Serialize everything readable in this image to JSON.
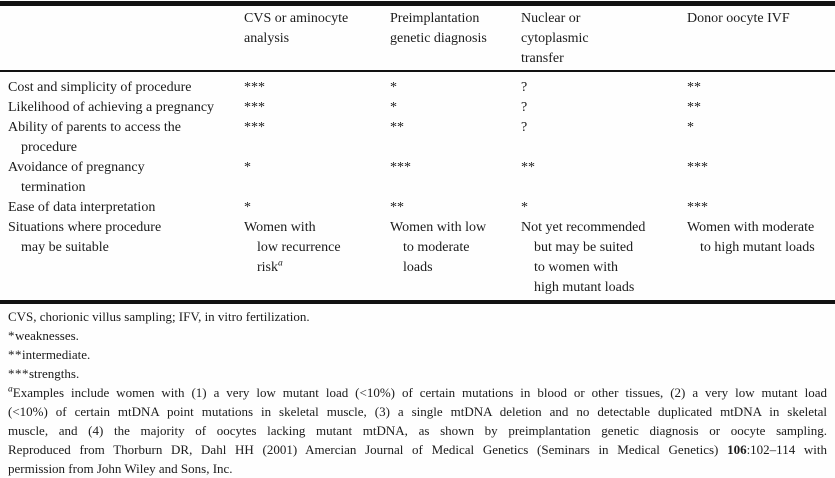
{
  "page": {
    "background": "#fefefe",
    "text_color": "#1b1b1b"
  },
  "table": {
    "header": {
      "col1_lines": [
        "CVS or aminocyte",
        "analysis"
      ],
      "col2_lines": [
        "Preimplantation",
        "genetic diagnosis"
      ],
      "col3_lines": [
        "Nuclear or",
        "cytoplasmic",
        "transfer"
      ],
      "col4_lines": [
        "Donor oocyte IVF"
      ]
    },
    "rows": [
      {
        "label_lines": [
          "Cost and simplicity of procedure"
        ],
        "values": [
          "***",
          "*",
          "?",
          "**"
        ]
      },
      {
        "label_lines": [
          "Likelihood of achieving a pregnancy"
        ],
        "values": [
          "***",
          "*",
          "?",
          "**"
        ]
      },
      {
        "label_lines": [
          "Ability of parents to access the",
          "procedure"
        ],
        "values": [
          "***",
          "**",
          "?",
          "*"
        ]
      },
      {
        "label_lines": [
          "Avoidance of pregnancy",
          "termination"
        ],
        "values": [
          "*",
          "***",
          "**",
          "***"
        ]
      },
      {
        "label_lines": [
          "Ease of data interpretation"
        ],
        "values": [
          "*",
          "**",
          "*",
          "***"
        ]
      }
    ],
    "situations_row": {
      "label_lines": [
        "Situations where procedure",
        "may be suitable"
      ],
      "cvs": {
        "lines": [
          "Women with",
          "low recurrence"
        ],
        "last_line": "risk",
        "sup": "a"
      },
      "pgd": {
        "lines": [
          "Women with low",
          "to moderate",
          "loads"
        ]
      },
      "nct": {
        "lines": [
          "Not yet recommended",
          "but may be suited",
          "to women with",
          "high mutant loads"
        ]
      },
      "ivf": {
        "lines": [
          "Women with moderate",
          "to high mutant loads"
        ]
      }
    }
  },
  "footnotes": {
    "abbrev": "CVS, chorionic villus sampling; IFV, in vitro fertilization.",
    "weak_marker": "*",
    "weak_text": "weaknesses.",
    "inter_marker": "**",
    "inter_text": "intermediate.",
    "strength_marker": "***",
    "strength_text": "strengths.",
    "examples_sup": "a",
    "examples_lines": [
      "Examples include women with (1) a very low mutant load (<10%) of certain mutations in blood or other tissues, (2) a very low mutant load",
      "(<10%) of certain mtDNA point mutations in skeletal muscle, (3) a single mtDNA deletion and no detectable duplicated mtDNA in skeletal",
      "muscle, and (4) the majority of oocytes lacking mutant mtDNA, as shown by preimplantation genetic diagnosis or oocyte sampling."
    ],
    "reproduced_before": "Reproduced from Thorburn DR, Dahl HH (2001) Amercian Journal of Medical Genetics (Seminars in Medical Genetics) ",
    "reproduced_bold": "106",
    "reproduced_after": ":102–114 with",
    "reproduced_line2": "permission from John Wiley and Sons, Inc."
  }
}
